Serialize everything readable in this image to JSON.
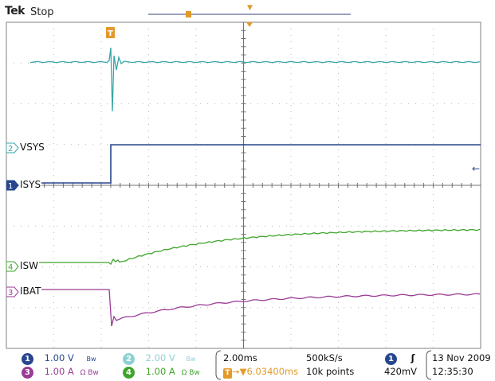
{
  "header": {
    "brand": "Tek",
    "state": "Stop"
  },
  "channels": [
    {
      "id": "2",
      "label": "VSYS",
      "color": "#3aa6a8"
    },
    {
      "id": "1",
      "label": "ISYS",
      "color": "#28468f"
    },
    {
      "id": "4",
      "label": "ISW",
      "color": "#3fa42c"
    },
    {
      "id": "3",
      "label": "IBAT",
      "color": "#9a3b95"
    }
  ],
  "markers": {
    "trigger_glyph": "T",
    "trigger_position_glyph": "▼",
    "level_arrow": "←"
  },
  "readout": {
    "ch1": {
      "num": "1",
      "scale": "1.00 V",
      "coupling": "Bw",
      "color": "#28468f"
    },
    "ch2": {
      "num": "2",
      "scale": "2.00 V",
      "coupling": "Bw",
      "color": "#8fd0d4"
    },
    "ch3": {
      "num": "3",
      "scale": "1.00 A",
      "coupling": "Ω Bw",
      "color": "#9a3b95"
    },
    "ch4": {
      "num": "4",
      "scale": "1.00 A",
      "coupling": "Ω Bw",
      "color": "#3fa42c"
    },
    "timebase": "2.00ms",
    "sample_rate": "500kS/s",
    "trigger_delay": "→▼6.03400ms",
    "record_length": "10k points",
    "trigger_source": "1",
    "trigger_slope": "ʃ",
    "trigger_level": "420mV",
    "date": "13 Nov 2009",
    "time": "12:35:30"
  }
}
